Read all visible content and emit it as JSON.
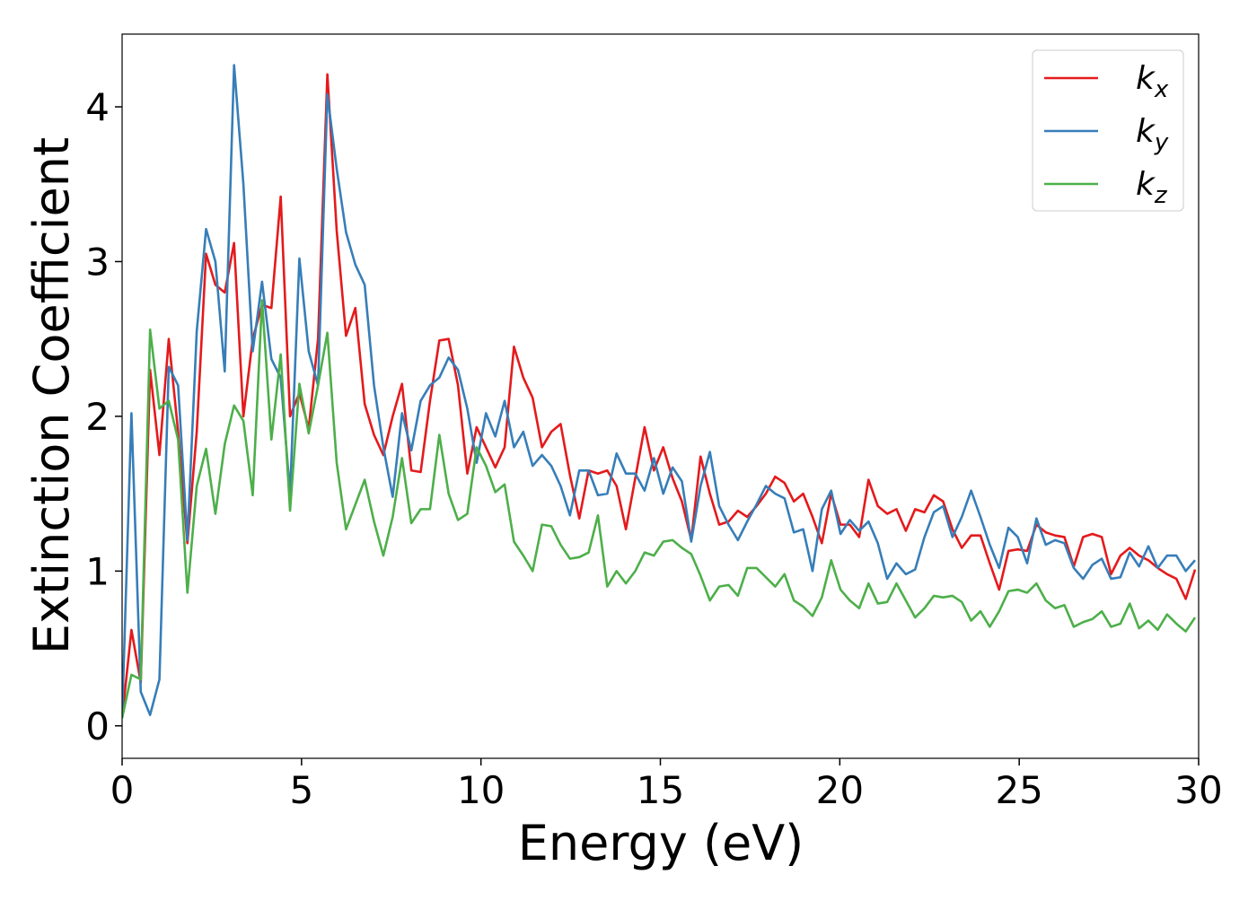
{
  "chart_data": {
    "type": "line",
    "xlabel": "Energy (eV)",
    "ylabel": "Extinction Coefficient",
    "x": [
      0,
      0.26,
      0.52,
      0.78,
      1.04,
      1.3,
      1.56,
      1.82,
      2.08,
      2.34,
      2.6,
      2.86,
      3.12,
      3.38,
      3.64,
      3.9,
      4.16,
      4.42,
      4.68,
      4.94,
      5.2,
      5.46,
      5.72,
      5.98,
      6.24,
      6.5,
      6.76,
      7.02,
      7.28,
      7.54,
      7.8,
      8.06,
      8.32,
      8.58,
      8.84,
      9.1,
      9.36,
      9.62,
      9.88,
      10.14,
      10.4,
      10.66,
      10.92,
      11.18,
      11.44,
      11.7,
      11.96,
      12.22,
      12.48,
      12.74,
      13.0,
      13.26,
      13.52,
      13.78,
      14.04,
      14.3,
      14.56,
      14.82,
      15.08,
      15.34,
      15.6,
      15.86,
      16.12,
      16.38,
      16.64,
      16.9,
      17.16,
      17.42,
      17.68,
      17.94,
      18.2,
      18.46,
      18.72,
      18.98,
      19.24,
      19.5,
      19.76,
      20.02,
      20.28,
      20.54,
      20.8,
      21.06,
      21.32,
      21.58,
      21.84,
      22.1,
      22.36,
      22.62,
      22.88,
      23.14,
      23.4,
      23.66,
      23.92,
      24.18,
      24.44,
      24.7,
      24.96,
      25.22,
      25.48,
      25.74,
      26.0,
      26.26,
      26.52,
      26.78,
      27.04,
      27.3,
      27.56,
      27.82,
      28.08,
      28.34,
      28.6,
      28.86,
      29.12,
      29.38,
      29.64,
      29.9
    ],
    "series": [
      {
        "name": "kx",
        "color": "#e41a1c",
        "values": [
          0.05,
          0.62,
          0.28,
          2.3,
          1.75,
          2.5,
          1.9,
          1.18,
          1.9,
          3.05,
          2.85,
          2.8,
          3.12,
          2.0,
          2.5,
          2.72,
          2.7,
          3.42,
          2.0,
          2.15,
          1.92,
          2.5,
          4.21,
          3.2,
          2.52,
          2.7,
          2.08,
          1.88,
          1.75,
          2.0,
          2.21,
          1.65,
          1.64,
          2.1,
          2.49,
          2.5,
          2.2,
          1.63,
          1.93,
          1.8,
          1.67,
          1.8,
          2.45,
          2.25,
          2.12,
          1.8,
          1.9,
          1.95,
          1.62,
          1.34,
          1.65,
          1.63,
          1.65,
          1.55,
          1.27,
          1.6,
          1.93,
          1.65,
          1.8,
          1.6,
          1.45,
          1.2,
          1.74,
          1.5,
          1.3,
          1.32,
          1.39,
          1.35,
          1.42,
          1.5,
          1.61,
          1.57,
          1.45,
          1.5,
          1.35,
          1.18,
          1.5,
          1.3,
          1.3,
          1.22,
          1.59,
          1.42,
          1.37,
          1.4,
          1.26,
          1.4,
          1.38,
          1.49,
          1.45,
          1.27,
          1.15,
          1.23,
          1.23,
          1.05,
          0.88,
          1.13,
          1.14,
          1.13,
          1.3,
          1.25,
          1.23,
          1.22,
          1.03,
          1.22,
          1.24,
          1.22,
          0.98,
          1.1,
          1.15,
          1.1,
          1.07,
          1.02,
          0.98,
          0.95,
          0.82,
          1.01
        ]
      },
      {
        "name": "ky",
        "color": "#377eb8",
        "values": [
          0.05,
          2.02,
          0.22,
          0.07,
          0.3,
          2.32,
          2.2,
          1.2,
          2.55,
          3.21,
          3.0,
          2.29,
          4.27,
          3.5,
          2.42,
          2.87,
          2.37,
          2.25,
          1.5,
          3.02,
          2.42,
          2.2,
          4.08,
          3.6,
          3.19,
          2.98,
          2.85,
          2.2,
          1.8,
          1.48,
          2.02,
          1.78,
          2.1,
          2.2,
          2.25,
          2.38,
          2.3,
          2.05,
          1.7,
          2.02,
          1.87,
          2.1,
          1.8,
          1.9,
          1.68,
          1.75,
          1.68,
          1.55,
          1.36,
          1.65,
          1.65,
          1.49,
          1.5,
          1.76,
          1.63,
          1.63,
          1.52,
          1.73,
          1.5,
          1.67,
          1.58,
          1.19,
          1.55,
          1.77,
          1.42,
          1.3,
          1.2,
          1.32,
          1.43,
          1.55,
          1.5,
          1.47,
          1.25,
          1.27,
          1.0,
          1.4,
          1.52,
          1.24,
          1.33,
          1.26,
          1.32,
          1.18,
          0.95,
          1.05,
          0.98,
          1.01,
          1.22,
          1.38,
          1.42,
          1.22,
          1.35,
          1.52,
          1.35,
          1.17,
          1.02,
          1.28,
          1.22,
          1.05,
          1.34,
          1.17,
          1.2,
          1.18,
          1.02,
          0.95,
          1.04,
          1.08,
          0.95,
          0.96,
          1.12,
          1.03,
          1.16,
          1.02,
          1.1,
          1.1,
          1.0,
          1.07
        ]
      },
      {
        "name": "kz",
        "color": "#4daf4a",
        "values": [
          0.05,
          0.33,
          0.3,
          2.56,
          2.05,
          2.1,
          1.85,
          0.86,
          1.55,
          1.79,
          1.37,
          1.82,
          2.07,
          1.97,
          1.49,
          2.75,
          1.85,
          2.4,
          1.39,
          2.21,
          1.89,
          2.2,
          2.54,
          1.7,
          1.27,
          1.43,
          1.59,
          1.32,
          1.1,
          1.35,
          1.73,
          1.31,
          1.4,
          1.4,
          1.88,
          1.5,
          1.33,
          1.37,
          1.8,
          1.68,
          1.51,
          1.56,
          1.19,
          1.1,
          1.0,
          1.3,
          1.29,
          1.17,
          1.08,
          1.09,
          1.12,
          1.36,
          0.9,
          1.0,
          0.92,
          1.0,
          1.12,
          1.1,
          1.19,
          1.2,
          1.15,
          1.11,
          0.97,
          0.81,
          0.9,
          0.91,
          0.84,
          1.02,
          1.02,
          0.96,
          0.9,
          0.98,
          0.81,
          0.77,
          0.71,
          0.83,
          1.07,
          0.88,
          0.81,
          0.76,
          0.92,
          0.79,
          0.8,
          0.92,
          0.81,
          0.7,
          0.76,
          0.84,
          0.83,
          0.84,
          0.8,
          0.68,
          0.74,
          0.64,
          0.74,
          0.87,
          0.88,
          0.86,
          0.92,
          0.81,
          0.76,
          0.78,
          0.64,
          0.67,
          0.69,
          0.74,
          0.64,
          0.66,
          0.79,
          0.63,
          0.68,
          0.62,
          0.72,
          0.66,
          0.61,
          0.7
        ]
      }
    ],
    "xlim": [
      0,
      30
    ],
    "xticks": [
      0,
      5,
      10,
      15,
      20,
      25,
      30
    ],
    "ylim": [
      -0.21,
      4.47
    ],
    "yticks": [
      0,
      1,
      2,
      3,
      4
    ],
    "grid": false,
    "legend": "upper right"
  }
}
